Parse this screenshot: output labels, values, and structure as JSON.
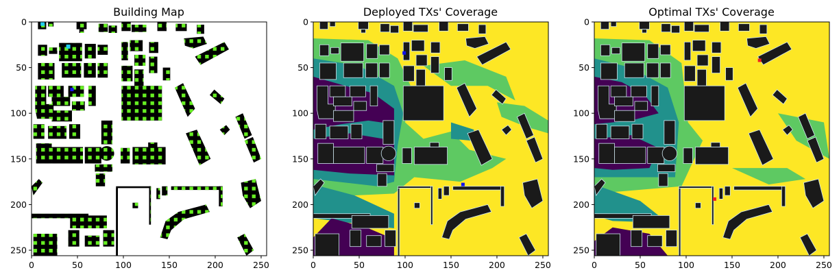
{
  "chart_data": [
    {
      "type": "heatmap",
      "title": "Building Map",
      "xlim": [
        0,
        256
      ],
      "ylim": [
        256,
        0
      ],
      "xticks": [
        0,
        50,
        100,
        150,
        200,
        250
      ],
      "yticks": [
        0,
        50,
        100,
        150,
        200,
        250
      ],
      "colors": {
        "background": "#ffffff",
        "building": "#000000",
        "candidate": "#66ee22",
        "marker_cyan": "#22ccee",
        "marker_blue": "#1111ee"
      },
      "markers": [
        {
          "x": 12,
          "y": 2,
          "color": "#22ccee"
        },
        {
          "x": 40,
          "y": 27,
          "color": "#22ccee"
        },
        {
          "x": 44,
          "y": 74,
          "color": "#1111ee"
        }
      ]
    },
    {
      "type": "heatmap",
      "title": "Deployed TXs' Coverage",
      "xlim": [
        0,
        256
      ],
      "ylim": [
        256,
        0
      ],
      "xticks": [
        0,
        50,
        100,
        150,
        200,
        250
      ],
      "yticks": [
        0,
        50,
        100,
        150,
        200,
        250
      ],
      "colors": {
        "level_1": "#440154",
        "level_2": "#21918c",
        "level_3": "#5ec962",
        "level_4": "#fde725",
        "building": "#1a1a1a",
        "edge": "#cfe6f0"
      },
      "transmitters": [
        {
          "x": 99,
          "y": 34,
          "color": "#1111ee"
        },
        {
          "x": 163,
          "y": 178,
          "color": "#1111ee"
        }
      ]
    },
    {
      "type": "heatmap",
      "title": "Optimal TXs' Coverage",
      "xlim": [
        0,
        256
      ],
      "ylim": [
        256,
        0
      ],
      "xticks": [
        0,
        50,
        100,
        150,
        200,
        250
      ],
      "yticks": [
        0,
        50,
        100,
        150,
        200,
        250
      ],
      "colors": {
        "level_1": "#440154",
        "level_2": "#21918c",
        "level_3": "#5ec962",
        "level_4": "#fde725",
        "building": "#1a1a1a",
        "edge": "#cfe6f0"
      },
      "transmitters": [
        {
          "x": 180,
          "y": 42,
          "color": "#ee2222"
        },
        {
          "x": 131,
          "y": 194,
          "color": "#ee2222"
        }
      ]
    }
  ]
}
